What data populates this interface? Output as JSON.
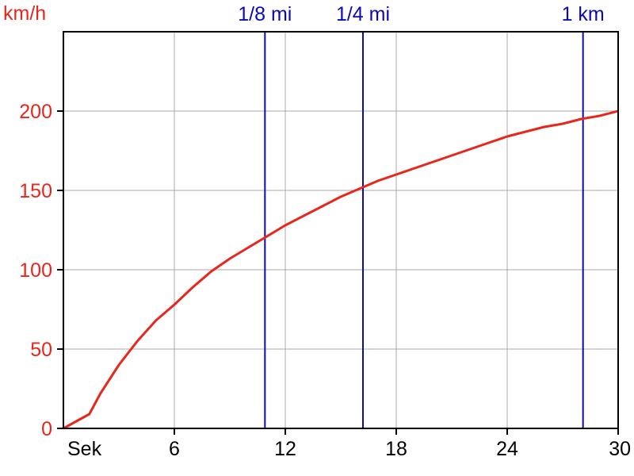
{
  "chart_data": {
    "type": "line",
    "title": "",
    "ylabel": "km/h",
    "xlabel": "Sek",
    "xlim": [
      0,
      30
    ],
    "ylim": [
      0,
      250
    ],
    "x_ticks": [
      6,
      12,
      18,
      24,
      30
    ],
    "y_ticks": [
      0,
      50,
      100,
      150,
      200
    ],
    "grid": true,
    "series": [
      {
        "color": "#e8261b",
        "x": [
          0,
          1.4,
          2,
          3,
          4,
          5,
          6,
          7,
          8,
          9,
          10,
          11,
          12,
          13,
          14,
          15,
          16,
          17,
          18,
          19,
          20,
          21,
          22,
          23,
          24,
          25,
          26,
          27,
          28,
          29,
          30
        ],
        "y": [
          0,
          9,
          22,
          40,
          55,
          68,
          78,
          89,
          99,
          107,
          114,
          121,
          128,
          134,
          140,
          146,
          151,
          156,
          160,
          164,
          168,
          172,
          176,
          180,
          184,
          187,
          190,
          192,
          195,
          197,
          200
        ]
      }
    ],
    "markers": [
      {
        "label": "1/8 mi",
        "x": 10.9,
        "color": "#0a0ab8"
      },
      {
        "label": "1/4 mi",
        "x": 16.2,
        "color": "#0a0ab8"
      },
      {
        "label": "1 km",
        "x": 28.1,
        "color": "#0a0ab8"
      }
    ],
    "ylabel_color": "#e8261b",
    "grid_color": "#aaaaaa"
  }
}
